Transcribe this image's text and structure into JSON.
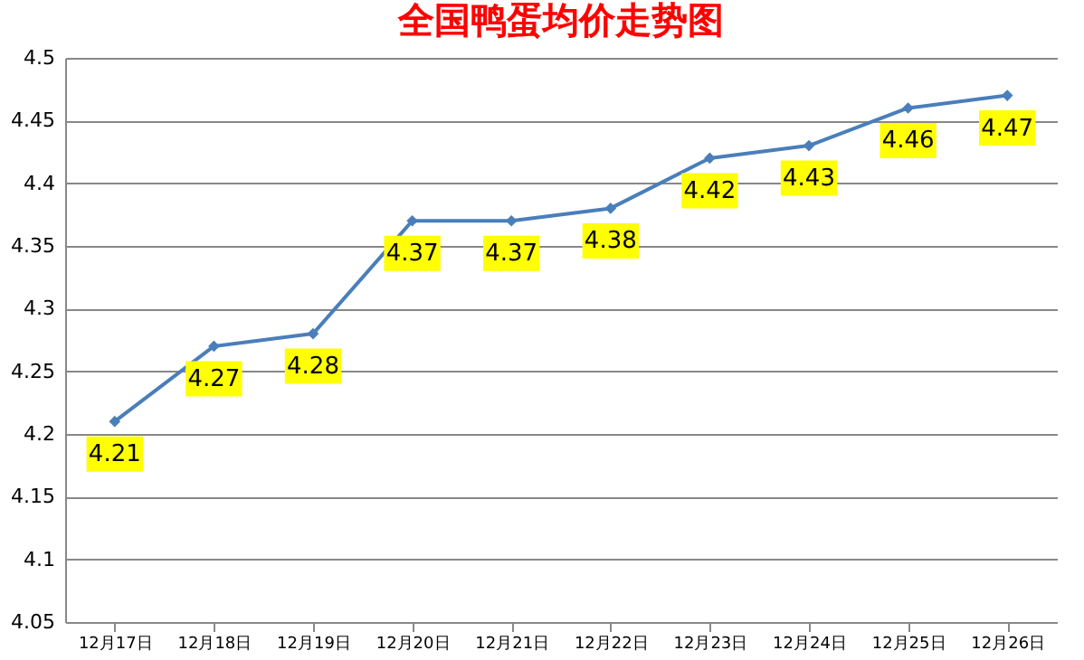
{
  "chart_data": {
    "type": "line",
    "title": "全国鸭蛋均价走势图",
    "categories": [
      "12月17日",
      "12月18日",
      "12月19日",
      "12月20日",
      "12月21日",
      "12月22日",
      "12月23日",
      "12月24日",
      "12月25日",
      "12月26日"
    ],
    "series": [
      {
        "color": "#4a7ebb",
        "values": [
          4.21,
          4.27,
          4.28,
          4.37,
          4.37,
          4.38,
          4.42,
          4.43,
          4.46,
          4.47
        ]
      }
    ],
    "ylim": [
      4.05,
      4.5
    ],
    "yticks": [
      4.05,
      4.1,
      4.15,
      4.2,
      4.25,
      4.3,
      4.35,
      4.4,
      4.45,
      4.5
    ],
    "grid": "y",
    "marker": "diamond",
    "line_style": "solid",
    "data_labels": true,
    "legend": false
  }
}
